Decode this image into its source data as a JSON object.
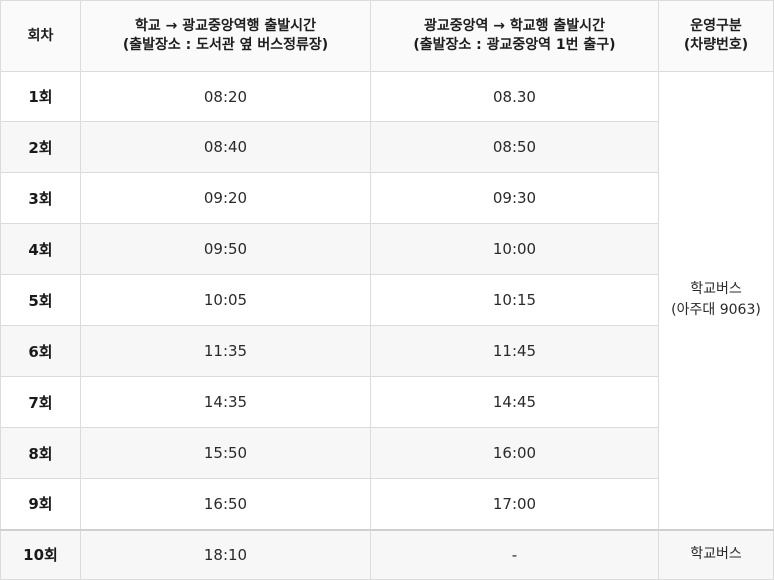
{
  "headers": {
    "round": "회차",
    "to_station_line1": "학교 → 광교중앙역행 출발시간",
    "to_station_line2": "(출발장소 : 도서관 옆 버스정류장)",
    "to_school_line1": "광교중앙역 → 학교행 출발시간",
    "to_school_line2": "(출발장소 : 광교중앙역 1번 출구)",
    "service_line1": "운영구분",
    "service_line2": "(차량번호)"
  },
  "rows": [
    {
      "round": "1회",
      "to_station": "08:20",
      "to_school": "08.30"
    },
    {
      "round": "2회",
      "to_station": "08:40",
      "to_school": "08:50"
    },
    {
      "round": "3회",
      "to_station": "09:20",
      "to_school": "09:30"
    },
    {
      "round": "4회",
      "to_station": "09:50",
      "to_school": "10:00"
    },
    {
      "round": "5회",
      "to_station": "10:05",
      "to_school": "10:15"
    },
    {
      "round": "6회",
      "to_station": "11:35",
      "to_school": "11:45"
    },
    {
      "round": "7회",
      "to_station": "14:35",
      "to_school": "14:45"
    },
    {
      "round": "8회",
      "to_station": "15:50",
      "to_school": "16:00"
    },
    {
      "round": "9회",
      "to_station": "16:50",
      "to_school": "17:00"
    },
    {
      "round": "10회",
      "to_station": "18:10",
      "to_school": "-"
    }
  ],
  "service_group_1": {
    "line1": "학교버스",
    "line2": "(아주대 9063)"
  },
  "service_group_2": {
    "line1": "학교버스"
  }
}
